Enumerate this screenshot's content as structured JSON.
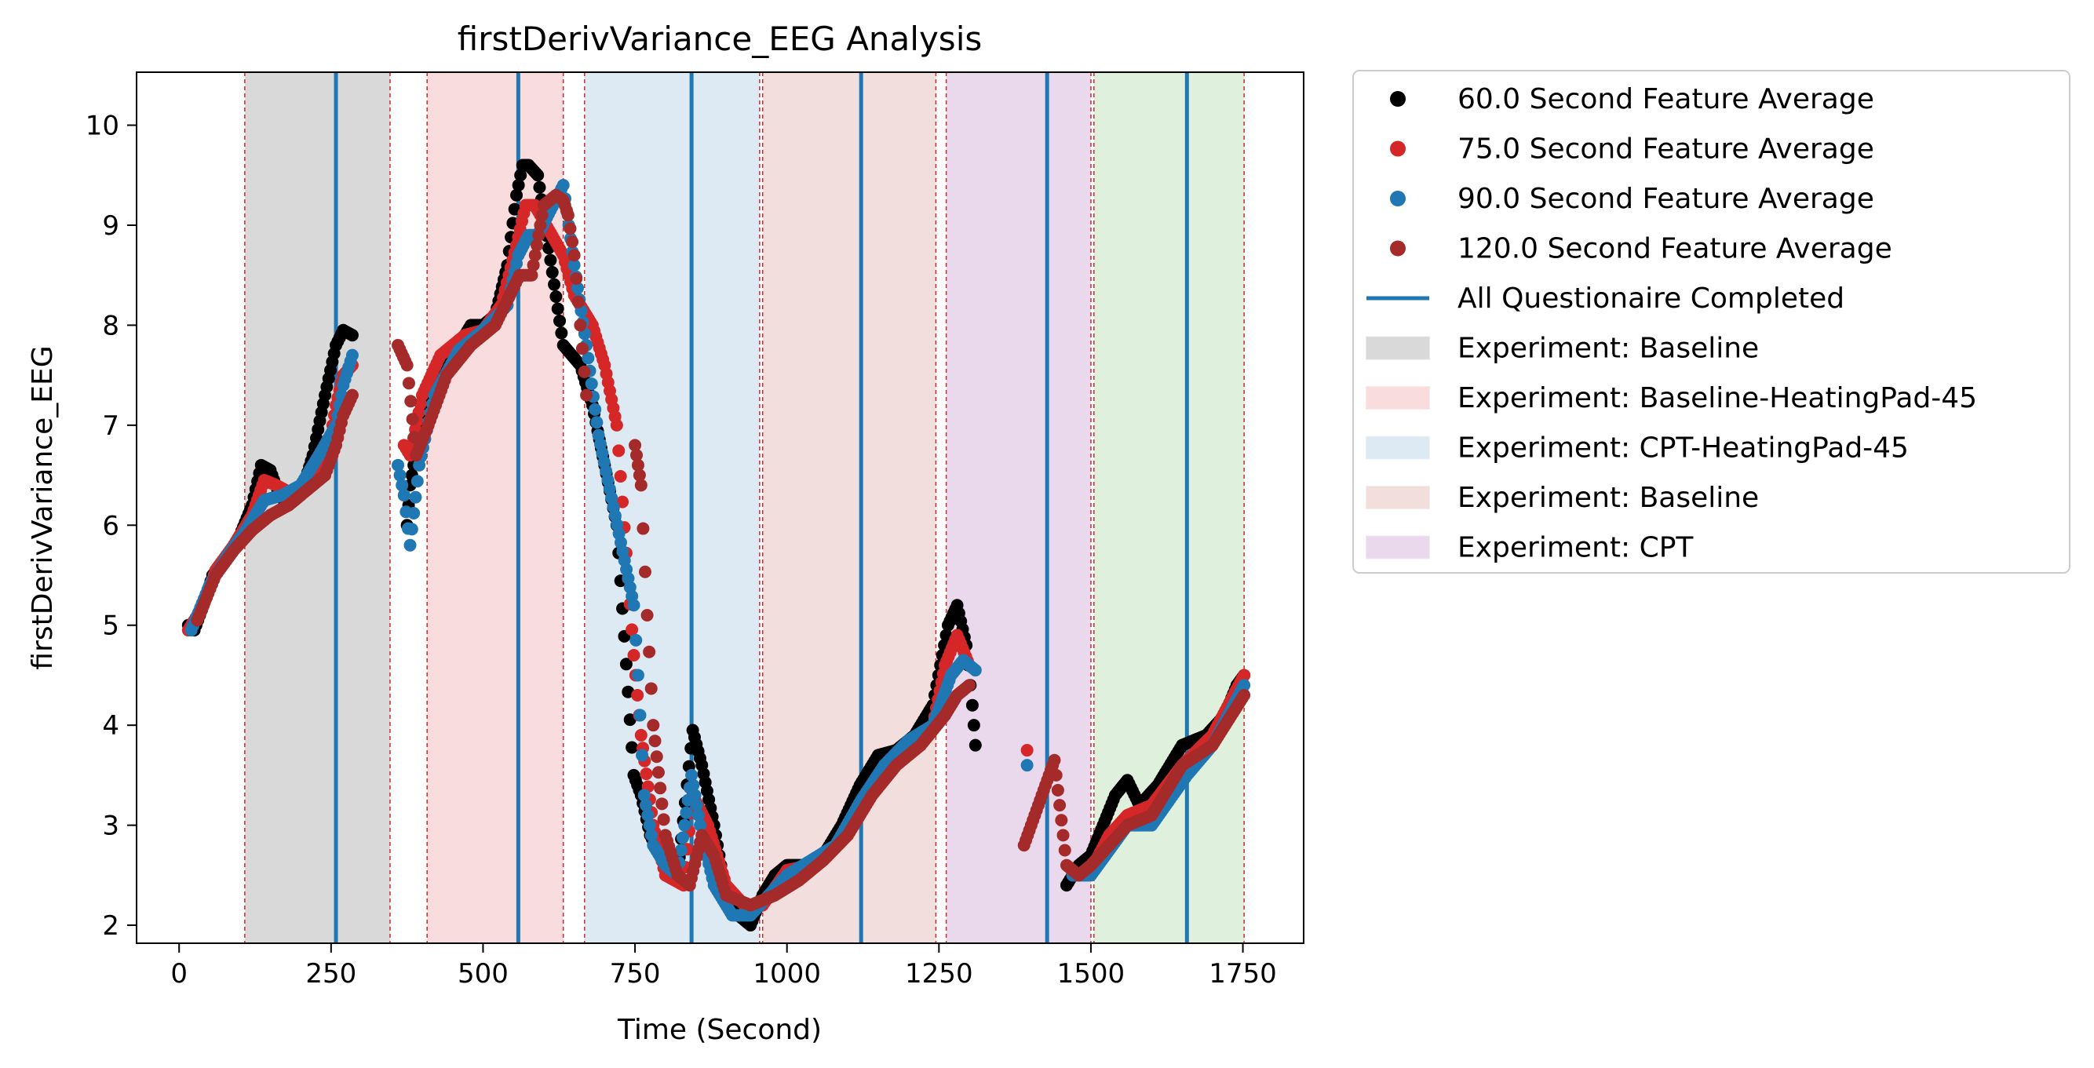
{
  "chart_data": {
    "type": "scatter",
    "title": "firstDerivVariance_EEG Analysis",
    "xlabel": "Time (Second)",
    "ylabel": "firstDerivVariance_EEG",
    "xlim": [
      -70,
      1850
    ],
    "ylim": [
      1.82,
      10.53
    ],
    "xticks": [
      0,
      250,
      500,
      750,
      1000,
      1250,
      1500,
      1750
    ],
    "yticks": [
      2,
      3,
      4,
      5,
      6,
      7,
      8,
      9,
      10
    ],
    "grid": false,
    "legend_placement": "outside-upper-right",
    "legend": [
      {
        "label": "60.0 Second Feature Average",
        "kind": "marker",
        "color": "#000000"
      },
      {
        "label": "75.0 Second Feature Average",
        "kind": "marker",
        "color": "#d62728"
      },
      {
        "label": "90.0 Second Feature Average",
        "kind": "marker",
        "color": "#1f77b4"
      },
      {
        "label": "120.0 Second Feature Average",
        "kind": "marker",
        "color": "#a52a2a"
      },
      {
        "label": "All Questionaire Completed",
        "kind": "line",
        "color": "#1f77b4"
      },
      {
        "label": "Experiment: Baseline",
        "kind": "patch",
        "color": "#d9d9d9"
      },
      {
        "label": "Experiment: Baseline-HeatingPad-45",
        "kind": "patch",
        "color": "#f9dcdd"
      },
      {
        "label": "Experiment: CPT-HeatingPad-45",
        "kind": "patch",
        "color": "#dde9f3"
      },
      {
        "label": "Experiment: Baseline",
        "kind": "patch",
        "color": "#f2dedc"
      },
      {
        "label": "Experiment: CPT",
        "kind": "patch",
        "color": "#ead9ec"
      }
    ],
    "phases": [
      {
        "start": 108,
        "end": 347,
        "color": "#d9d9d9"
      },
      {
        "start": 408,
        "end": 632,
        "color": "#f9dcdd"
      },
      {
        "start": 667,
        "end": 955,
        "color": "#dde9f3"
      },
      {
        "start": 960,
        "end": 1245,
        "color": "#f2dedc"
      },
      {
        "start": 1262,
        "end": 1500,
        "color": "#ead9ec"
      },
      {
        "start": 1505,
        "end": 1752,
        "color": "#dff0dc"
      }
    ],
    "phase_boundaries": [
      108,
      347,
      408,
      632,
      667,
      955,
      960,
      1245,
      1262,
      1500,
      1505,
      1752
    ],
    "questionnaire_completed": [
      258,
      558,
      843,
      1122,
      1428,
      1658
    ],
    "series": [
      {
        "name": "60.0 Second Feature Average",
        "color": "#000000",
        "x": [
          15,
          25,
          40,
          55,
          75,
          100,
          120,
          135,
          150,
          165,
          180,
          200,
          220,
          240,
          258,
          270,
          285,
          375,
          380,
          395,
          420,
          450,
          480,
          500,
          520,
          540,
          555,
          565,
          575,
          590,
          632,
          660,
          680,
          700,
          720,
          748,
          760,
          775,
          800,
          820,
          845,
          860,
          880,
          900,
          920,
          940,
          960,
          980,
          1000,
          1030,
          1060,
          1090,
          1120,
          1150,
          1180,
          1210,
          1240,
          1265,
          1280,
          1295,
          1305,
          1310,
          1460,
          1480,
          1500,
          1520,
          1540,
          1560,
          1580,
          1610,
          1650,
          1690,
          1720,
          1740,
          1752
        ],
        "y": [
          5.0,
          4.95,
          5.2,
          5.5,
          5.65,
          5.9,
          6.2,
          6.6,
          6.55,
          6.3,
          6.2,
          6.3,
          6.7,
          7.3,
          7.8,
          7.95,
          7.9,
          6.0,
          6.4,
          6.9,
          7.4,
          7.7,
          8.0,
          8.0,
          8.1,
          8.6,
          9.3,
          9.6,
          9.6,
          9.5,
          7.8,
          7.6,
          7.2,
          6.6,
          6.0,
          3.5,
          3.3,
          2.9,
          2.6,
          2.5,
          3.95,
          3.6,
          3.0,
          2.3,
          2.1,
          2.0,
          2.3,
          2.5,
          2.6,
          2.6,
          2.7,
          3.0,
          3.4,
          3.7,
          3.75,
          3.9,
          4.2,
          5.0,
          5.2,
          4.8,
          4.2,
          3.8,
          2.4,
          2.6,
          2.7,
          3.0,
          3.3,
          3.45,
          3.2,
          3.4,
          3.8,
          3.9,
          4.1,
          4.4,
          4.5
        ]
      },
      {
        "name": "75.0 Second Feature Average",
        "color": "#d62728",
        "x": [
          15,
          40,
          60,
          90,
          120,
          140,
          160,
          190,
          220,
          250,
          258,
          270,
          285,
          370,
          380,
          400,
          430,
          470,
          500,
          530,
          555,
          570,
          585,
          632,
          650,
          680,
          700,
          720,
          748,
          760,
          780,
          800,
          830,
          845,
          870,
          900,
          930,
          960,
          1000,
          1040,
          1080,
          1120,
          1160,
          1200,
          1240,
          1260,
          1280,
          1300,
          1395,
          1470,
          1500,
          1530,
          1560,
          1600,
          1650,
          1700,
          1752
        ],
        "y": [
          4.95,
          5.2,
          5.55,
          5.8,
          6.1,
          6.45,
          6.4,
          6.3,
          6.5,
          6.9,
          7.2,
          7.5,
          7.6,
          6.8,
          6.7,
          7.3,
          7.7,
          7.9,
          7.95,
          8.2,
          8.8,
          9.2,
          9.2,
          8.7,
          8.3,
          8.0,
          7.6,
          7.0,
          4.7,
          3.9,
          3.0,
          2.5,
          2.4,
          3.3,
          3.0,
          2.4,
          2.2,
          2.2,
          2.55,
          2.6,
          2.8,
          3.2,
          3.6,
          3.8,
          4.0,
          4.6,
          4.9,
          4.6,
          3.75,
          2.5,
          2.55,
          2.9,
          3.1,
          3.2,
          3.6,
          3.9,
          4.5
        ]
      },
      {
        "name": "90.0 Second Feature Average",
        "color": "#1f77b4",
        "x": [
          20,
          50,
          80,
          110,
          140,
          170,
          200,
          230,
          258,
          270,
          285,
          360,
          370,
          380,
          395,
          420,
          460,
          500,
          540,
          558,
          575,
          590,
          632,
          650,
          670,
          690,
          748,
          755,
          765,
          780,
          800,
          820,
          843,
          860,
          880,
          910,
          940,
          970,
          1000,
          1040,
          1080,
          1122,
          1160,
          1200,
          1240,
          1270,
          1290,
          1310,
          1395,
          1470,
          1500,
          1530,
          1560,
          1600,
          1658,
          1700,
          1752
        ],
        "y": [
          4.95,
          5.4,
          5.7,
          5.95,
          6.25,
          6.3,
          6.4,
          6.7,
          7.0,
          7.4,
          7.7,
          6.6,
          6.3,
          5.8,
          6.6,
          7.3,
          7.75,
          7.95,
          8.2,
          8.7,
          8.9,
          8.9,
          9.4,
          8.6,
          7.8,
          6.9,
          5.2,
          4.5,
          3.3,
          2.8,
          2.6,
          2.5,
          3.5,
          2.9,
          2.4,
          2.1,
          2.1,
          2.3,
          2.5,
          2.65,
          2.8,
          3.25,
          3.6,
          3.85,
          4.0,
          4.5,
          4.65,
          4.55,
          3.6,
          2.5,
          2.5,
          2.75,
          3.0,
          3.0,
          3.5,
          3.8,
          4.4
        ]
      },
      {
        "name": "120.0 Second Feature Average",
        "color": "#a52a2a",
        "x": [
          30,
          60,
          90,
          120,
          150,
          180,
          210,
          240,
          258,
          270,
          285,
          360,
          375,
          390,
          410,
          440,
          480,
          520,
          560,
          580,
          600,
          620,
          632,
          640,
          650,
          660,
          670,
          750,
          755,
          760,
          770,
          780,
          800,
          820,
          840,
          860,
          880,
          900,
          940,
          980,
          1020,
          1060,
          1100,
          1140,
          1180,
          1220,
          1260,
          1280,
          1300,
          1390,
          1440,
          1460,
          1480,
          1500,
          1530,
          1560,
          1600,
          1650,
          1700,
          1752
        ],
        "y": [
          5.05,
          5.5,
          5.75,
          5.95,
          6.1,
          6.2,
          6.35,
          6.5,
          6.8,
          7.1,
          7.3,
          7.8,
          7.6,
          6.7,
          7.0,
          7.5,
          7.8,
          8.0,
          8.5,
          8.5,
          9.2,
          9.3,
          9.25,
          9.1,
          8.7,
          8.0,
          7.3,
          6.8,
          6.6,
          6.4,
          5.1,
          4.0,
          2.9,
          2.5,
          2.4,
          2.9,
          2.7,
          2.3,
          2.2,
          2.3,
          2.45,
          2.65,
          2.9,
          3.3,
          3.6,
          3.8,
          4.1,
          4.3,
          4.4,
          2.8,
          3.65,
          2.6,
          2.5,
          2.6,
          2.8,
          3.0,
          3.1,
          3.6,
          3.8,
          4.3
        ]
      }
    ]
  }
}
